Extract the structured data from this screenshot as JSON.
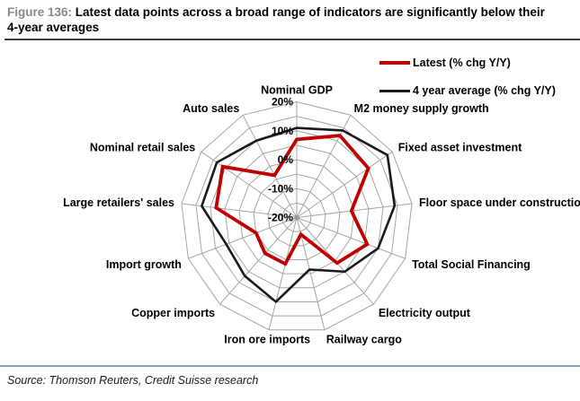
{
  "header": {
    "figure_label": "Figure 136:",
    "title": " Latest data points across a broad range of indicators are significantly below their 4-year averages"
  },
  "legend": [
    {
      "id": "latest",
      "label": "Latest (% chg Y/Y)",
      "color": "#c00000"
    },
    {
      "id": "average",
      "label": "4 year average (% chg Y/Y)",
      "color": "#1a1a1a"
    }
  ],
  "chart_data": {
    "type": "radar",
    "categories": [
      "Nominal GDP",
      "M2 money supply growth",
      "Fixed asset investment",
      "Floor space under construction",
      "Total Social Financing",
      "Electricity output",
      "Railway cargo",
      "Iron ore imports",
      "Copper imports",
      "Import growth",
      "Large retailers' sales",
      "Nominal retail sales",
      "Auto sales"
    ],
    "series": [
      {
        "name": "Latest (% chg Y/Y)",
        "color": "#c00000",
        "values": [
          7,
          12,
          10,
          -1,
          6,
          1,
          -14,
          -3.5,
          -3.5,
          -5,
          8,
          11,
          -3.5
        ]
      },
      {
        "name": "4 year average (% chg Y/Y)",
        "color": "#1a1a1a",
        "values": [
          11,
          14,
          18,
          14,
          10,
          5,
          -1.5,
          10,
          7,
          6,
          13,
          13.5,
          10
        ]
      }
    ],
    "radial_axis": {
      "min": -20,
      "max": 20,
      "ring_step": 5,
      "ticks": [
        {
          "value": 20,
          "label": "20%"
        },
        {
          "value": 10,
          "label": "10%"
        },
        {
          "value": 0,
          "label": "0%"
        },
        {
          "value": -10,
          "label": "-10%"
        },
        {
          "value": -20,
          "label": "-20%"
        }
      ]
    },
    "grid": true,
    "grid_color": "#a6a6a6",
    "legend_position": "top-right"
  },
  "footer": {
    "source": "Source: Thomson Reuters, Credit Suisse research"
  }
}
